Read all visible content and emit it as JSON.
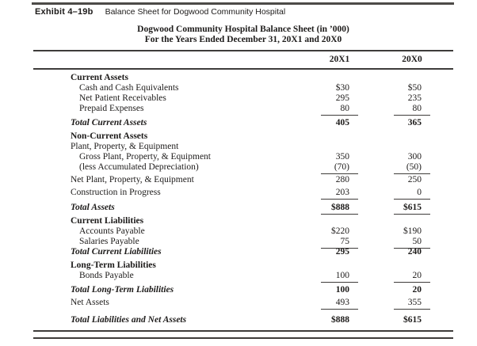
{
  "exhibit": {
    "label": "Exhibit 4–19b",
    "caption": "Balance Sheet for Dogwood Community Hospital"
  },
  "title": {
    "line1": "Dogwood Community Hospital Balance Sheet (in ’000)",
    "line2": "For the Years Ended December 31, 20X1 and 20X0"
  },
  "columns": [
    "20X1",
    "20X0"
  ],
  "rows": [
    {
      "label": "Current Assets",
      "v1": "",
      "v2": "",
      "cls": "section first"
    },
    {
      "label": "Cash and Cash Equivalents",
      "v1": "$30",
      "v2": "$50",
      "cls": "item"
    },
    {
      "label": "Net Patient Receivables",
      "v1": "295",
      "v2": "235",
      "cls": "item"
    },
    {
      "label": "Prepaid Expenses",
      "v1": "80",
      "v2": "80",
      "cls": "item",
      "u": true
    },
    {
      "label": "Total Current Assets",
      "v1": "405",
      "v2": "365",
      "cls": "total"
    },
    {
      "label": "Non-Current Assets",
      "v1": "",
      "v2": "",
      "cls": "section"
    },
    {
      "label": "Plant, Property, & Equipment",
      "v1": "",
      "v2": "",
      "cls": "plain tight"
    },
    {
      "label": "Gross Plant, Property, & Equipment",
      "v1": "350",
      "v2": "300",
      "cls": "item"
    },
    {
      "label": "(less Accumulated Depreciation)",
      "v1": "(70)",
      "v2": "(50)",
      "cls": "item",
      "u": true
    },
    {
      "label": "Net Plant, Property, & Equipment",
      "v1": "280",
      "v2": "250",
      "cls": "plain"
    },
    {
      "label": "Construction in Progress",
      "v1": "203",
      "v2": "0",
      "cls": "plain",
      "u": true
    },
    {
      "label": "Total Assets",
      "v1": "$888",
      "v2": "$615",
      "cls": "total grand",
      "u": true
    },
    {
      "label": "Current Liabilities",
      "v1": "",
      "v2": "",
      "cls": "section"
    },
    {
      "label": "Accounts Payable",
      "v1": "$220",
      "v2": "$190",
      "cls": "item"
    },
    {
      "label": "Salaries Payable",
      "v1": "75",
      "v2": "50",
      "cls": "item",
      "u": true
    },
    {
      "label": "Total Current Liabilities",
      "v1": "295",
      "v2": "240",
      "cls": "total tight"
    },
    {
      "label": "Long-Term Liabilities",
      "v1": "",
      "v2": "",
      "cls": "section"
    },
    {
      "label": "Bonds Payable",
      "v1": "100",
      "v2": "20",
      "cls": "item",
      "u": true
    },
    {
      "label": "Total Long-Term Liabilities",
      "v1": "100",
      "v2": "20",
      "cls": "total"
    },
    {
      "label": "Net Assets",
      "v1": "493",
      "v2": "355",
      "cls": "plain",
      "u": true
    },
    {
      "label": "Total Liabilities and Net Assets",
      "v1": "$888",
      "v2": "$615",
      "cls": "total last"
    }
  ],
  "colors": {
    "text": "#1d1b1a",
    "rule": "#3e3c3a",
    "top_bar": "#4c4a48",
    "background": "#ffffff"
  }
}
